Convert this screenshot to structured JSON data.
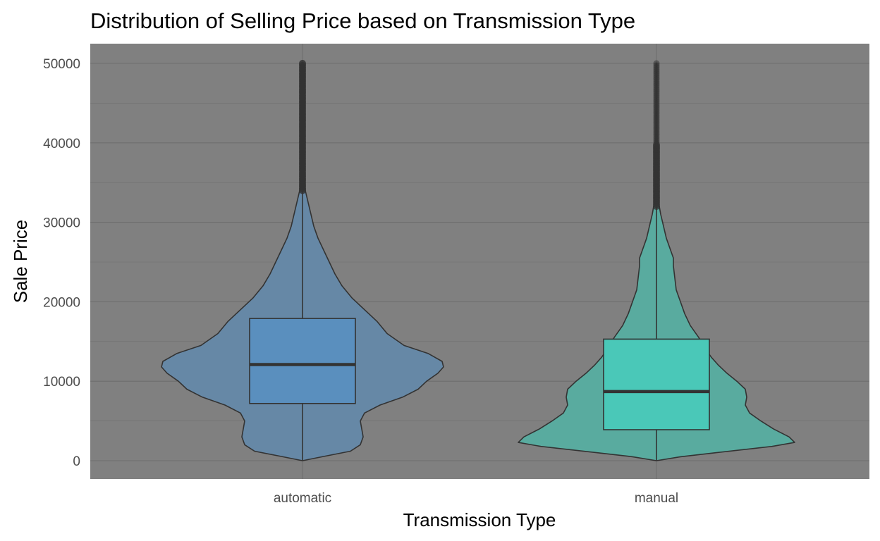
{
  "chart_data": {
    "type": "violin",
    "title": "Distribution of Selling Price based on Transmission Type",
    "xlabel": "Transmission Type",
    "ylabel": "Sale Price",
    "ylim": [
      -2500,
      52500
    ],
    "yticks": [
      0,
      10000,
      20000,
      30000,
      40000,
      50000
    ],
    "yticks_labels": [
      "0",
      "10000",
      "20000",
      "30000",
      "40000",
      "50000"
    ],
    "categories": [
      "automatic",
      "manual"
    ],
    "grid": true,
    "background_color": "#808080",
    "grid_color": "#6e6e6e",
    "series": [
      {
        "name": "automatic",
        "fill_color": "#6688a6",
        "box_color": "#5a8fbe",
        "outline_color": "#333333",
        "box": {
          "q1": 7200,
          "median": 12100,
          "q3": 17900,
          "whisker_low": 0,
          "whisker_high": 34000
        },
        "outliers_range": [
          34000,
          50000
        ],
        "density": [
          [
            0,
            0.0
          ],
          [
            500,
            0.14
          ],
          [
            1200,
            0.34
          ],
          [
            2000,
            0.41
          ],
          [
            3000,
            0.43
          ],
          [
            4000,
            0.42
          ],
          [
            5000,
            0.41
          ],
          [
            6000,
            0.44
          ],
          [
            7000,
            0.55
          ],
          [
            8000,
            0.71
          ],
          [
            9000,
            0.82
          ],
          [
            10000,
            0.88
          ],
          [
            11000,
            0.96
          ],
          [
            11800,
            1.0
          ],
          [
            12500,
            0.99
          ],
          [
            13500,
            0.89
          ],
          [
            14500,
            0.72
          ],
          [
            16000,
            0.6
          ],
          [
            17500,
            0.53
          ],
          [
            19000,
            0.44
          ],
          [
            20500,
            0.35
          ],
          [
            22000,
            0.28
          ],
          [
            23500,
            0.23
          ],
          [
            25000,
            0.19
          ],
          [
            26500,
            0.15
          ],
          [
            28000,
            0.11
          ],
          [
            29500,
            0.08
          ],
          [
            31000,
            0.06
          ],
          [
            32500,
            0.04
          ],
          [
            34000,
            0.02
          ],
          [
            36000,
            0.012
          ],
          [
            38000,
            0.008
          ],
          [
            40000,
            0.006
          ],
          [
            43000,
            0.005
          ],
          [
            46000,
            0.004
          ],
          [
            50000,
            0.003
          ]
        ]
      },
      {
        "name": "manual",
        "fill_color": "#59ab9f",
        "box_color": "#4ac8b8",
        "outline_color": "#333333",
        "box": {
          "q1": 3900,
          "median": 8700,
          "q3": 15300,
          "whisker_low": 0,
          "whisker_high": 32000
        },
        "outliers_range": [
          32000,
          50000
        ],
        "density": [
          [
            0,
            0.0
          ],
          [
            500,
            0.17
          ],
          [
            1000,
            0.42
          ],
          [
            1800,
            0.82
          ],
          [
            2300,
            0.98
          ],
          [
            3000,
            0.94
          ],
          [
            4000,
            0.83
          ],
          [
            5000,
            0.74
          ],
          [
            6000,
            0.66
          ],
          [
            7000,
            0.63
          ],
          [
            8000,
            0.64
          ],
          [
            9000,
            0.63
          ],
          [
            10000,
            0.57
          ],
          [
            11000,
            0.5
          ],
          [
            12000,
            0.44
          ],
          [
            13000,
            0.39
          ],
          [
            14000,
            0.35
          ],
          [
            15500,
            0.3
          ],
          [
            17000,
            0.24
          ],
          [
            18500,
            0.2
          ],
          [
            20000,
            0.17
          ],
          [
            21500,
            0.14
          ],
          [
            23000,
            0.13
          ],
          [
            24500,
            0.12
          ],
          [
            25500,
            0.12
          ],
          [
            26500,
            0.1
          ],
          [
            28000,
            0.07
          ],
          [
            29500,
            0.05
          ],
          [
            31000,
            0.03
          ],
          [
            32500,
            0.015
          ],
          [
            35000,
            0.008
          ],
          [
            38000,
            0.006
          ],
          [
            42000,
            0.004
          ],
          [
            46000,
            0.003
          ],
          [
            50000,
            0.003
          ]
        ]
      }
    ]
  }
}
